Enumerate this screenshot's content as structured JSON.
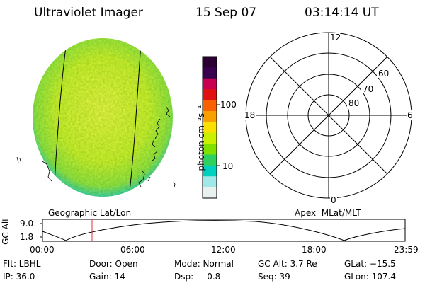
{
  "header": {
    "instrument": "Ultraviolet Imager",
    "date": "15 Sep 07",
    "time": "03:14:14 UT"
  },
  "colorbar": {
    "label": "photon cm⁻²s⁻¹",
    "ticks": [
      "100",
      "10"
    ],
    "colors": [
      "#2a0030",
      "#3a0050",
      "#c80050",
      "#e01010",
      "#f86000",
      "#f8a000",
      "#f8e000",
      "#c8f000",
      "#80e000",
      "#30d060",
      "#00d0c0",
      "#a0e8e8",
      "#e8f0f0"
    ]
  },
  "left_map": {
    "label": "Geographic Lat/Lon",
    "fill_color": "#c8ec2c"
  },
  "right_map": {
    "label": "Apex  MLat/MLT",
    "mlt_labels": {
      "top": "12",
      "left": "18",
      "right": "6",
      "bottom": "0"
    },
    "lat_labels": [
      "60",
      "70",
      "80"
    ]
  },
  "altitude_plot": {
    "ylabel": "GC Alt",
    "yticks": [
      "9.0",
      "1.8"
    ],
    "xticks": [
      "00:00",
      "06:00",
      "12:00",
      "18:00",
      "23:59"
    ],
    "marker_color": "#e03030"
  },
  "status": {
    "flt": "Flt: LBHL",
    "ip": "IP: 36.0",
    "door": "Door: Open",
    "gain": "Gain: 14",
    "mode": "Mode: Normal",
    "dsp": "Dsp:     0.8",
    "gcalt": "GC Alt: 3.7 Re",
    "seq": "Seq: 39",
    "glat": "GLat: −15.5",
    "glon": "GLon: 107.4"
  }
}
